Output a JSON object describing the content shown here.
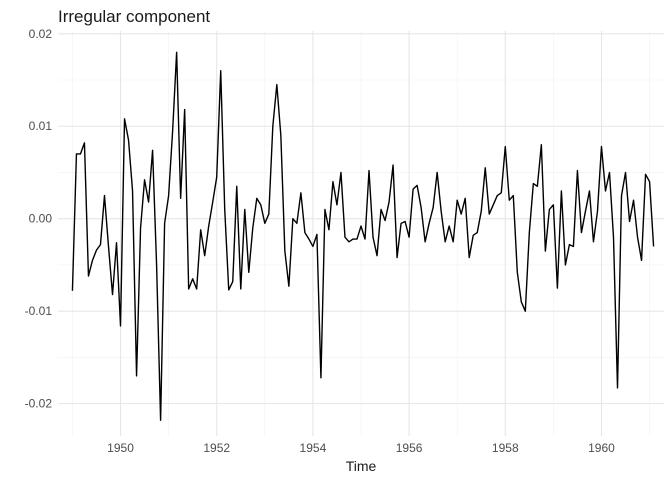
{
  "chart_data": {
    "type": "line",
    "title": "Irregular component",
    "xlabel": "Time",
    "ylabel": "",
    "xlim": [
      1948.7,
      1961.3
    ],
    "ylim": [
      -0.0235,
      0.0203
    ],
    "x_ticks": [
      1950,
      1952,
      1954,
      1956,
      1958,
      1960
    ],
    "x_tick_labels": [
      "1950",
      "1952",
      "1954",
      "1956",
      "1958",
      "1960"
    ],
    "y_ticks": [
      -0.02,
      -0.01,
      0.0,
      0.01,
      0.02
    ],
    "y_tick_labels": [
      "-0.02",
      "-0.01",
      "0.00",
      "0.01",
      "0.02"
    ],
    "grid": true,
    "x_start": 1949.0,
    "x_step": 0.083333,
    "series": [
      {
        "values": [
          -0.0078,
          0.007,
          0.007,
          0.0082,
          -0.0062,
          -0.0045,
          -0.0034,
          -0.0028,
          0.0025,
          -0.003,
          -0.0082,
          -0.0026,
          -0.0116,
          0.0108,
          0.0085,
          0.003,
          -0.017,
          -0.001,
          0.0042,
          0.0018,
          0.0074,
          -0.005,
          -0.0218,
          -0.0005,
          0.0025,
          0.0095,
          0.018,
          0.0022,
          0.0118,
          -0.0076,
          -0.0065,
          -0.0076,
          -0.0012,
          -0.004,
          -0.0008,
          0.0018,
          0.0045,
          0.016,
          0.001,
          -0.0077,
          -0.0068,
          0.0035,
          -0.0076,
          0.001,
          -0.0058,
          -0.001,
          0.0022,
          0.0015,
          -0.0005,
          0.0005,
          0.01,
          0.0145,
          0.009,
          -0.0035,
          -0.0073,
          0.0,
          -0.0005,
          0.0028,
          -0.0015,
          -0.0022,
          -0.003,
          -0.0017,
          -0.0172,
          0.001,
          -0.0012,
          0.004,
          0.0015,
          0.005,
          -0.002,
          -0.0025,
          -0.0022,
          -0.0022,
          -0.0008,
          -0.0022,
          0.0052,
          -0.002,
          -0.004,
          0.001,
          -0.0002,
          0.0018,
          0.0058,
          -0.0042,
          -0.0005,
          -0.0003,
          -0.002,
          0.0032,
          0.0036,
          0.0012,
          -0.0025,
          -0.0005,
          0.0012,
          0.005,
          0.0008,
          -0.0025,
          -0.0008,
          -0.0025,
          0.002,
          0.0005,
          0.0022,
          -0.0042,
          -0.0018,
          -0.0015,
          0.0008,
          0.0055,
          0.0005,
          0.0015,
          0.0025,
          0.0028,
          0.0078,
          0.002,
          0.0025,
          -0.0058,
          -0.009,
          -0.01,
          -0.0015,
          0.0038,
          0.0035,
          0.008,
          -0.0035,
          0.001,
          0.0015,
          -0.0075,
          0.003,
          -0.005,
          -0.0028,
          -0.003,
          0.0052,
          -0.0015,
          0.0008,
          0.003,
          -0.0025,
          0.0008,
          0.0078,
          0.003,
          0.005,
          -0.002,
          -0.0183,
          0.0025,
          0.005,
          -0.0003,
          0.002,
          -0.002,
          -0.0045,
          0.0048,
          0.004,
          -0.003
        ]
      }
    ]
  }
}
